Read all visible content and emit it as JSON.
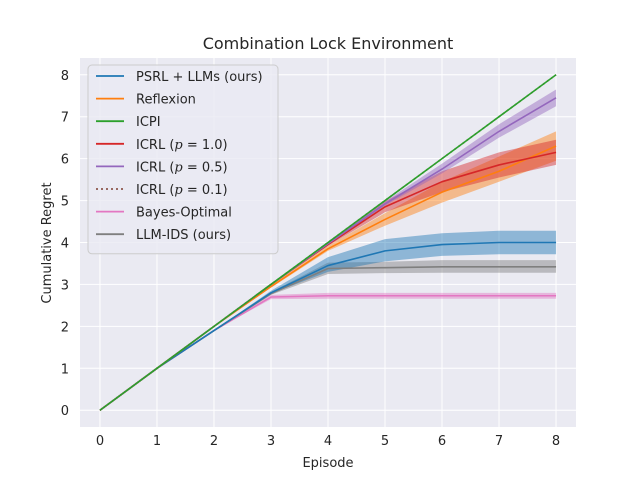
{
  "chart_data": {
    "type": "line",
    "title": "Combination Lock Environment",
    "xlabel": "Episode",
    "ylabel": "Cumulative Regret",
    "xlim": [
      -0.35,
      8.35
    ],
    "ylim": [
      -0.4,
      8.4
    ],
    "grid": true,
    "legend_position": "upper-left",
    "x": [
      0,
      1,
      2,
      3,
      4,
      5,
      6,
      7,
      8
    ],
    "xticks": [
      "0",
      "1",
      "2",
      "3",
      "4",
      "5",
      "6",
      "7",
      "8"
    ],
    "yticks": [
      "0",
      "1",
      "2",
      "3",
      "4",
      "5",
      "6",
      "7",
      "8"
    ],
    "series": [
      {
        "name": "Bayes-Optimal",
        "color": "#e377c2",
        "style": "solid",
        "values": [
          0,
          1,
          1.9,
          2.7,
          2.73,
          2.73,
          2.73,
          2.73,
          2.73
        ],
        "lower": [
          0,
          1,
          1.9,
          2.65,
          2.66,
          2.66,
          2.66,
          2.66,
          2.66
        ],
        "upper": [
          0,
          1,
          1.9,
          2.75,
          2.8,
          2.8,
          2.8,
          2.8,
          2.8
        ]
      },
      {
        "name": "LLM-IDS (ours)",
        "color": "#7f7f7f",
        "style": "solid",
        "values": [
          0,
          1,
          1.9,
          2.78,
          3.38,
          3.4,
          3.42,
          3.42,
          3.42
        ],
        "lower": [
          0,
          1,
          1.9,
          2.75,
          3.25,
          3.27,
          3.28,
          3.28,
          3.28
        ],
        "upper": [
          0,
          1,
          1.9,
          2.82,
          3.52,
          3.54,
          3.58,
          3.58,
          3.58
        ]
      },
      {
        "name": "PSRL + LLMs (ours)",
        "color": "#1f77b4",
        "style": "solid",
        "values": [
          0,
          1,
          1.9,
          2.8,
          3.45,
          3.8,
          3.95,
          4.0,
          4.0
        ],
        "lower": [
          0,
          1,
          1.9,
          2.78,
          3.3,
          3.55,
          3.68,
          3.72,
          3.72
        ],
        "upper": [
          0,
          1,
          1.9,
          2.85,
          3.65,
          4.08,
          4.22,
          4.28,
          4.28
        ]
      },
      {
        "name": "Reflexion",
        "color": "#ff7f0e",
        "style": "solid",
        "values": [
          0,
          1,
          2,
          2.95,
          3.85,
          4.55,
          5.2,
          5.7,
          6.3
        ],
        "lower": [
          0,
          1,
          2,
          2.92,
          3.8,
          4.4,
          4.95,
          5.45,
          5.95
        ],
        "upper": [
          0,
          1,
          2,
          2.98,
          3.92,
          4.7,
          5.45,
          6.05,
          6.65
        ]
      },
      {
        "name": "ICRL (p = 1.0)",
        "color": "#d62728",
        "style": "solid",
        "values": [
          0,
          1,
          2,
          3,
          3.95,
          4.85,
          5.45,
          5.85,
          6.15
        ],
        "lower": [
          0,
          1,
          2,
          3,
          3.92,
          4.72,
          5.2,
          5.55,
          5.85
        ],
        "upper": [
          0,
          1,
          2,
          3,
          3.98,
          4.98,
          5.7,
          6.15,
          6.45
        ]
      },
      {
        "name": "ICRL (p = 0.5)",
        "color": "#9467bd",
        "style": "solid",
        "values": [
          0,
          1,
          2,
          3,
          3.97,
          4.92,
          5.75,
          6.65,
          7.45
        ],
        "lower": [
          0,
          1,
          2,
          3,
          3.95,
          4.88,
          5.65,
          6.5,
          7.25
        ],
        "upper": [
          0,
          1,
          2,
          3,
          3.99,
          4.98,
          5.88,
          6.82,
          7.65
        ]
      },
      {
        "name": "ICRL (p = 0.1)",
        "color": "#8c564b",
        "style": "dotted",
        "values": [
          0,
          1,
          2,
          3,
          4,
          5,
          6,
          7,
          8
        ]
      },
      {
        "name": "ICPI",
        "color": "#2ca02c",
        "style": "solid",
        "values": [
          0,
          1,
          2,
          3,
          4,
          5,
          6,
          7,
          8
        ]
      }
    ],
    "legend": [
      {
        "label": "PSRL + LLMs (ours)",
        "color": "#1f77b4",
        "style": "solid"
      },
      {
        "label": "Reflexion",
        "color": "#ff7f0e",
        "style": "solid"
      },
      {
        "label": "ICPI",
        "color": "#2ca02c",
        "style": "solid"
      },
      {
        "label": "ICRL (",
        "p": "p",
        "rest": " = 1.0)",
        "color": "#d62728",
        "style": "solid"
      },
      {
        "label": "ICRL (",
        "p": "p",
        "rest": " = 0.5)",
        "color": "#9467bd",
        "style": "solid"
      },
      {
        "label": "ICRL (",
        "p": "p",
        "rest": " = 0.1)",
        "color": "#8c564b",
        "style": "dotted"
      },
      {
        "label": "Bayes-Optimal",
        "color": "#e377c2",
        "style": "solid"
      },
      {
        "label": "LLM-IDS (ours)",
        "color": "#7f7f7f",
        "style": "solid"
      }
    ],
    "colors": {
      "background": "#eaeaf2",
      "grid": "#ffffff"
    }
  }
}
